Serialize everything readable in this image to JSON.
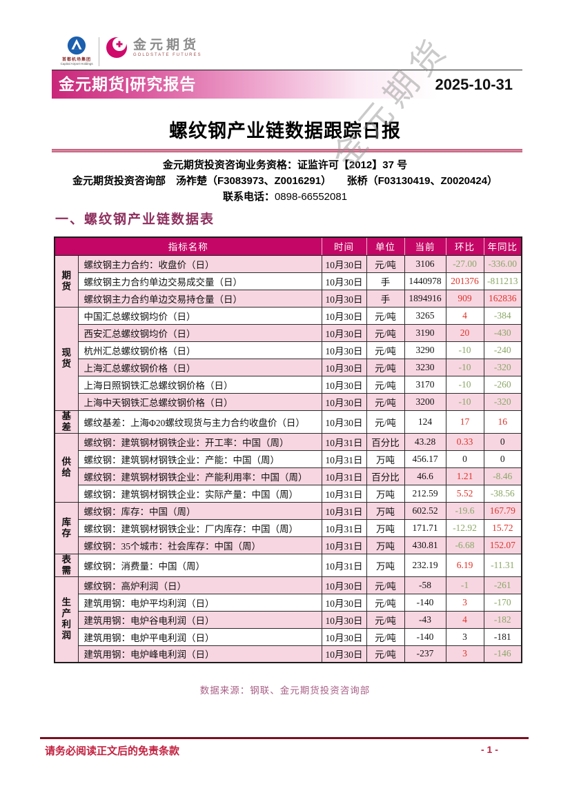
{
  "brand": {
    "logo1_caption_cn": "首都机场集团",
    "logo1_caption_en": "Capital Airport Holdings",
    "logo2_name": "金元期货",
    "logo2_sub": "GOLDSTATE FUTURES"
  },
  "header": {
    "banner_title": "金元期货|研究报告",
    "date": "2025-10-31",
    "watermark": "金元期货"
  },
  "report": {
    "title": "螺纹钢产业链数据跟踪日报",
    "qualification": "金元期货投资咨询业务资格：证监许可【2012】37 号",
    "analysts": "金元期货投资咨询部　汤祚楚（F3083973、Z0016291）　　张桥（F03130419、Z0020424）",
    "contact_label": "联系电话：",
    "contact_phone": "0898-66552081",
    "section_title": "一、螺纹钢产业链数据表",
    "source_note": "数据来源：钢联、金元期货投资咨询部"
  },
  "table": {
    "headers": [
      "指标名称",
      "时间",
      "单位",
      "当前",
      "环比",
      "年同比"
    ],
    "groups": [
      {
        "name": "期货",
        "rows": [
          {
            "indicator": "螺纹钢主力合约：收盘价（日）",
            "date": "10月30日",
            "unit": "元/吨",
            "current": "3106",
            "mom": "-27.00",
            "mom_color": "green",
            "yoy": "-336.00",
            "yoy_color": "green"
          },
          {
            "indicator": "螺纹钢主力合约单边交易成交量（日）",
            "date": "10月30日",
            "unit": "手",
            "current": "1440978",
            "mom": "201376",
            "mom_color": "red",
            "yoy": "-811213",
            "yoy_color": "green"
          },
          {
            "indicator": "螺纹钢主力合约单边交易持仓量（日）",
            "date": "10月30日",
            "unit": "手",
            "current": "1894916",
            "mom": "909",
            "mom_color": "red",
            "yoy": "162836",
            "yoy_color": "red"
          }
        ]
      },
      {
        "name": "现货",
        "rows": [
          {
            "indicator": "中国汇总螺纹钢均价（日）",
            "date": "10月30日",
            "unit": "元/吨",
            "current": "3265",
            "mom": "4",
            "mom_color": "red",
            "yoy": "-384",
            "yoy_color": "green"
          },
          {
            "indicator": "西安汇总螺纹钢均价（日）",
            "date": "10月30日",
            "unit": "元/吨",
            "current": "3190",
            "mom": "20",
            "mom_color": "red",
            "yoy": "-430",
            "yoy_color": "green"
          },
          {
            "indicator": "杭州汇总螺纹钢价格（日）",
            "date": "10月30日",
            "unit": "元/吨",
            "current": "3290",
            "mom": "-10",
            "mom_color": "green",
            "yoy": "-240",
            "yoy_color": "green"
          },
          {
            "indicator": "上海汇总螺纹钢价格（日）",
            "date": "10月30日",
            "unit": "元/吨",
            "current": "3230",
            "mom": "-10",
            "mom_color": "green",
            "yoy": "-320",
            "yoy_color": "green"
          },
          {
            "indicator": "上海日照钢铁汇总螺纹钢价格（日）",
            "date": "10月30日",
            "unit": "元/吨",
            "current": "3170",
            "mom": "-10",
            "mom_color": "green",
            "yoy": "-260",
            "yoy_color": "green"
          },
          {
            "indicator": "上海中天钢铁汇总螺纹钢价格（日）",
            "date": "10月30日",
            "unit": "元/吨",
            "current": "3200",
            "mom": "-10",
            "mom_color": "green",
            "yoy": "-320",
            "yoy_color": "green"
          }
        ]
      },
      {
        "name": "基差",
        "rows": [
          {
            "indicator": "螺纹基差：上海Φ20螺纹现货与主力合约收盘价（日）",
            "date": "10月30日",
            "unit": "元/吨",
            "current": "124",
            "mom": "17",
            "mom_color": "red",
            "yoy": "16",
            "yoy_color": "red"
          }
        ]
      },
      {
        "name": "供给",
        "rows": [
          {
            "indicator": "螺纹钢：建筑钢材钢铁企业：开工率：中国（周）",
            "date": "10月31日",
            "unit": "百分比",
            "current": "43.28",
            "mom": "0.33",
            "mom_color": "red",
            "yoy": "0",
            "yoy_color": "black"
          },
          {
            "indicator": "螺纹钢：建筑钢材钢铁企业：产能：中国（周）",
            "date": "10月31日",
            "unit": "万吨",
            "current": "456.17",
            "mom": "0",
            "mom_color": "black",
            "yoy": "0",
            "yoy_color": "black"
          },
          {
            "indicator": "螺纹钢：建筑钢材钢铁企业：产能利用率：中国（周）",
            "date": "10月31日",
            "unit": "百分比",
            "current": "46.6",
            "mom": "1.21",
            "mom_color": "red",
            "yoy": "-8.46",
            "yoy_color": "green"
          },
          {
            "indicator": "螺纹钢：建筑钢材钢铁企业：实际产量：中国（周）",
            "date": "10月31日",
            "unit": "万吨",
            "current": "212.59",
            "mom": "5.52",
            "mom_color": "red",
            "yoy": "-38.56",
            "yoy_color": "green"
          }
        ]
      },
      {
        "name": "库存",
        "rows": [
          {
            "indicator": "螺纹钢：库存：中国（周）",
            "date": "10月31日",
            "unit": "万吨",
            "current": "602.52",
            "mom": "-19.6",
            "mom_color": "green",
            "yoy": "167.79",
            "yoy_color": "red"
          },
          {
            "indicator": "螺纹钢：建筑钢材钢铁企业：厂内库存：中国（周）",
            "date": "10月31日",
            "unit": "万吨",
            "current": "171.71",
            "mom": "-12.92",
            "mom_color": "green",
            "yoy": "15.72",
            "yoy_color": "red"
          },
          {
            "indicator": "螺纹钢：35个城市：社会库存：中国（周）",
            "date": "10月31日",
            "unit": "万吨",
            "current": "430.81",
            "mom": "-6.68",
            "mom_color": "green",
            "yoy": "152.07",
            "yoy_color": "red"
          }
        ]
      },
      {
        "name": "表需",
        "rows": [
          {
            "indicator": "螺纹钢：消费量：中国（周）",
            "date": "10月31日",
            "unit": "万吨",
            "current": "232.19",
            "mom": "6.19",
            "mom_color": "red",
            "yoy": "-11.31",
            "yoy_color": "green"
          }
        ]
      },
      {
        "name": "生产利润",
        "rows": [
          {
            "indicator": "螺纹钢：高炉利润（日）",
            "date": "10月30日",
            "unit": "元/吨",
            "current": "-58",
            "mom": "-1",
            "mom_color": "green",
            "yoy": "-261",
            "yoy_color": "green"
          },
          {
            "indicator": "建筑用钢：电炉平均利润（日）",
            "date": "10月30日",
            "unit": "元/吨",
            "current": "-140",
            "mom": "3",
            "mom_color": "red",
            "yoy": "-170",
            "yoy_color": "green"
          },
          {
            "indicator": "建筑用钢：电炉谷电利润（日）",
            "date": "10月30日",
            "unit": "元/吨",
            "current": "-43",
            "mom": "4",
            "mom_color": "red",
            "yoy": "-182",
            "yoy_color": "green"
          },
          {
            "indicator": "建筑用钢：电炉平电利润（日）",
            "date": "10月30日",
            "unit": "元/吨",
            "current": "-140",
            "mom": "3",
            "mom_color": "black",
            "yoy": "-181",
            "yoy_color": "black"
          },
          {
            "indicator": "建筑用钢：电炉峰电利润（日）",
            "date": "10月30日",
            "unit": "元/吨",
            "current": "-237",
            "mom": "3",
            "mom_color": "red",
            "yoy": "-146",
            "yoy_color": "green"
          }
        ]
      }
    ]
  },
  "footer": {
    "disclaimer": "请务必阅读正文后的免责条款",
    "page": "- 1 -"
  },
  "colors": {
    "table_header_bg": "#c40766",
    "row_pink": "#f7d6e1",
    "value_red": "#e03228",
    "value_green": "#8aa766",
    "value_black": "#1a1a1a",
    "section_maroon": "#8e2f5e",
    "source_pink": "#a85f86",
    "footer_crimson": "#c2203f",
    "footer_line": "#7a1020"
  }
}
